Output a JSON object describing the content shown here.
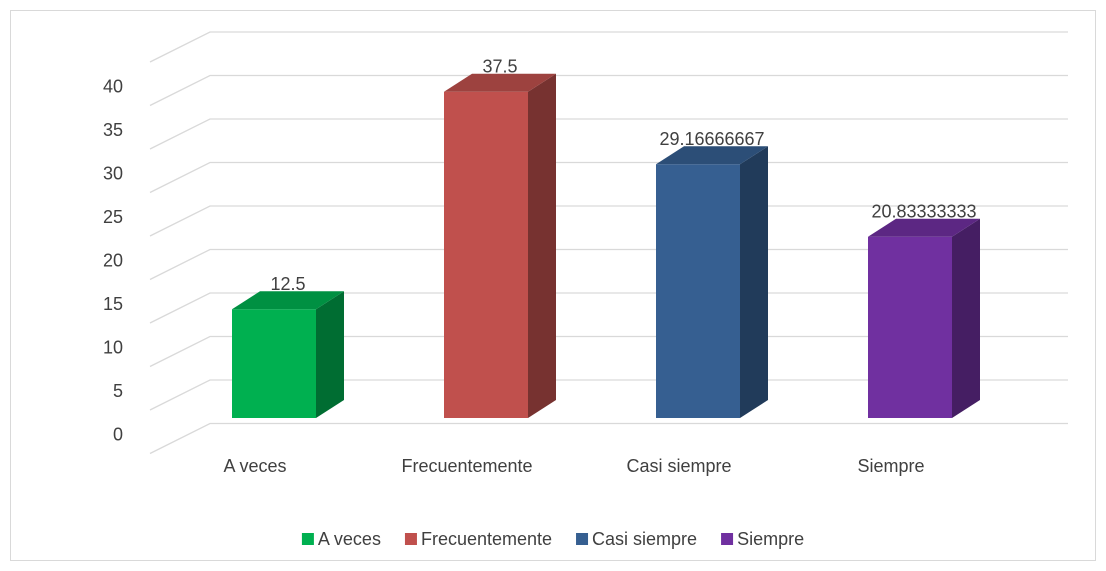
{
  "chart_data": {
    "type": "bar3d",
    "categories": [
      "A veces",
      "Frecuentemente",
      "Casi siempre",
      "Siempre"
    ],
    "values": [
      12.5,
      37.5,
      29.16666667,
      20.83333333
    ],
    "colors": [
      "#00b050",
      "#c0504d",
      "#365f91",
      "#7030a0"
    ],
    "ylim": [
      0,
      45
    ],
    "yticks": [
      0,
      5,
      10,
      15,
      20,
      25,
      30,
      35,
      40
    ],
    "grid": true,
    "legend": "bottom"
  }
}
